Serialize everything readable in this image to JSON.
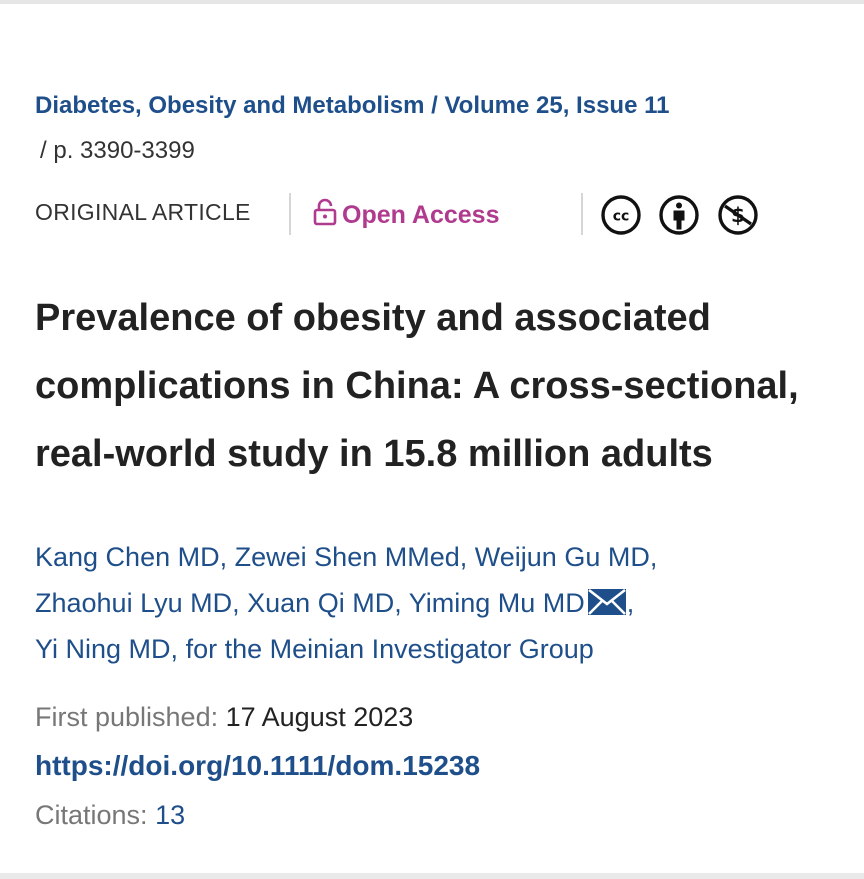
{
  "breadcrumb": {
    "journal": "Diabetes, Obesity and Metabolism",
    "separator": "/",
    "volume_issue": "Volume 25, Issue 11",
    "pages_separator": "/",
    "pages": "p. 3390-3399"
  },
  "article_meta": {
    "type": "ORIGINAL ARTICLE",
    "access_label": "Open Access",
    "access_icon": "lock-open-icon",
    "access_color": "#b03a8e",
    "license_icons": [
      "creative-commons-icon",
      "attribution-icon",
      "non-commercial-icon"
    ]
  },
  "title_lines": [
    "Prevalence of obesity and associated",
    "complications in China: A cross-sectional,",
    "real-world study in 15.8 million adults"
  ],
  "authors": [
    "Kang Chen MD",
    "Zewei Shen MMed",
    "Weijun Gu MD",
    "Zhaohui Lyu MD",
    "Xuan Qi MD",
    "Yiming Mu MD",
    "Yi Ning MD",
    "for the Meinian Investigator Group"
  ],
  "author_separator": ",",
  "corresponding_icon": "envelope-icon",
  "published": {
    "label": "First published:",
    "date": "17 August 2023"
  },
  "doi": "https://doi.org/10.1111/dom.15238",
  "citations": {
    "label": "Citations:",
    "count": "13"
  },
  "colors": {
    "link": "#1f4f8a",
    "text": "#222222",
    "muted": "#777777"
  }
}
